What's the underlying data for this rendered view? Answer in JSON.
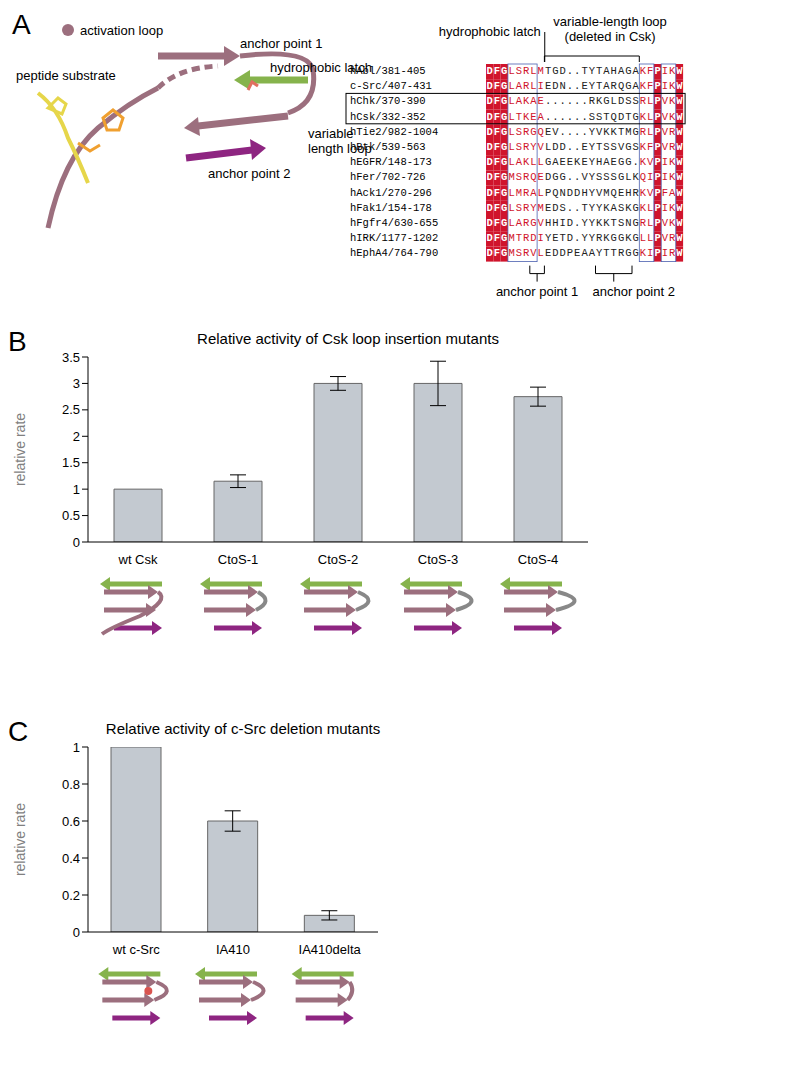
{
  "panel_A": {
    "panel": "A",
    "diagram_labels": {
      "activation_loop": "activation loop",
      "peptide_substrate": "peptide substrate",
      "anchor_point_1": "anchor point 1",
      "hydrophobic_latch": "hydrophobic latch",
      "anchor_point_2": "anchor point 2",
      "variable_length_loop": "variable length loop"
    },
    "alignment": {
      "top_labels": {
        "hydrophobic_latch": "hydrophobic latch",
        "variable_length_loop": "variable-length loop",
        "deleted_note": "(deleted in Csk)"
      },
      "bottom_labels": {
        "anchor_point_1": "anchor point 1",
        "anchor_point_2": "anchor point 2"
      },
      "rows": [
        {
          "name": "hAbl/381-405",
          "sequence": "DFGLSRLMTGD..TYTAHAGAKFPIKW"
        },
        {
          "name": "c-Src/407-431",
          "sequence": "DFGLARLIEDN..EYTARQGAKFPIKW"
        },
        {
          "name": "hChk/370-390",
          "sequence": "DFGLAKAE......RKGLDSSRLPVKW"
        },
        {
          "name": "hCsk/332-352",
          "sequence": "DFGLTKEA......SSTQDTGKLPVKW"
        },
        {
          "name": "hTie2/982-1004",
          "sequence": "DFGLSRGQEV....YVKKTMGRLPVRW"
        },
        {
          "name": "hBtk/539-563",
          "sequence": "DFGLSRYVLDD..EYTSSVGSKFPVRW"
        },
        {
          "name": "hEGFR/148-173",
          "sequence": "DFGLAKLLGAEEKEYHAEGG.KVPIKW"
        },
        {
          "name": "hFer/702-726",
          "sequence": "DFGMSRQEDGG..VYSSSGLKQIPIKW"
        },
        {
          "name": "hAck1/270-296",
          "sequence": "DFGLMRALPQNDDHYVMQEHRKVPFAW"
        },
        {
          "name": "hFak1/154-178",
          "sequence": "DFGLSRYMEDS..TYYKASKGKLPIKW"
        },
        {
          "name": "hFgfr4/630-655",
          "sequence": "DFGLARGVHHID.YYKKTSNGRLPVKW"
        },
        {
          "name": "hIRK/1177-1202",
          "sequence": "DFGMTRDIYETD.YYRKGGKGLLPVRW"
        },
        {
          "name": "hEphA4/764-790",
          "sequence": "DFGMSRVLEDDPEAAYTTRGGKIPIRW"
        }
      ]
    }
  },
  "chart_data": [
    {
      "panel": "B",
      "type": "bar",
      "title": "Relative activity of Csk loop insertion mutants",
      "y_label": "relative rate",
      "categories": [
        "wt Csk",
        "CtoS-1",
        "CtoS-2",
        "CtoS-3",
        "CtoS-4"
      ],
      "values": [
        1,
        1.15,
        3.0,
        3.0,
        2.75
      ],
      "errors": [
        null,
        0.12,
        0.13,
        0.42,
        0.18
      ],
      "color": "#c3c9d0",
      "ylim": [
        0,
        3.5
      ],
      "yticks": [
        0,
        0.5,
        1,
        1.5,
        2,
        2.5,
        3,
        3.5
      ]
    },
    {
      "panel": "C",
      "type": "bar",
      "title": "Relative activity of c-Src deletion mutants",
      "y_label": "relative rate",
      "categories": [
        "wt c-Src",
        "IA410",
        "IA410delta"
      ],
      "values": [
        1,
        0.6,
        0.09
      ],
      "errors": [
        null,
        0.055,
        0.025
      ],
      "color": "#c3c9d0",
      "ylim": [
        0,
        1
      ],
      "yticks": [
        0,
        0.2,
        0.4,
        0.6,
        0.8,
        1
      ]
    }
  ]
}
